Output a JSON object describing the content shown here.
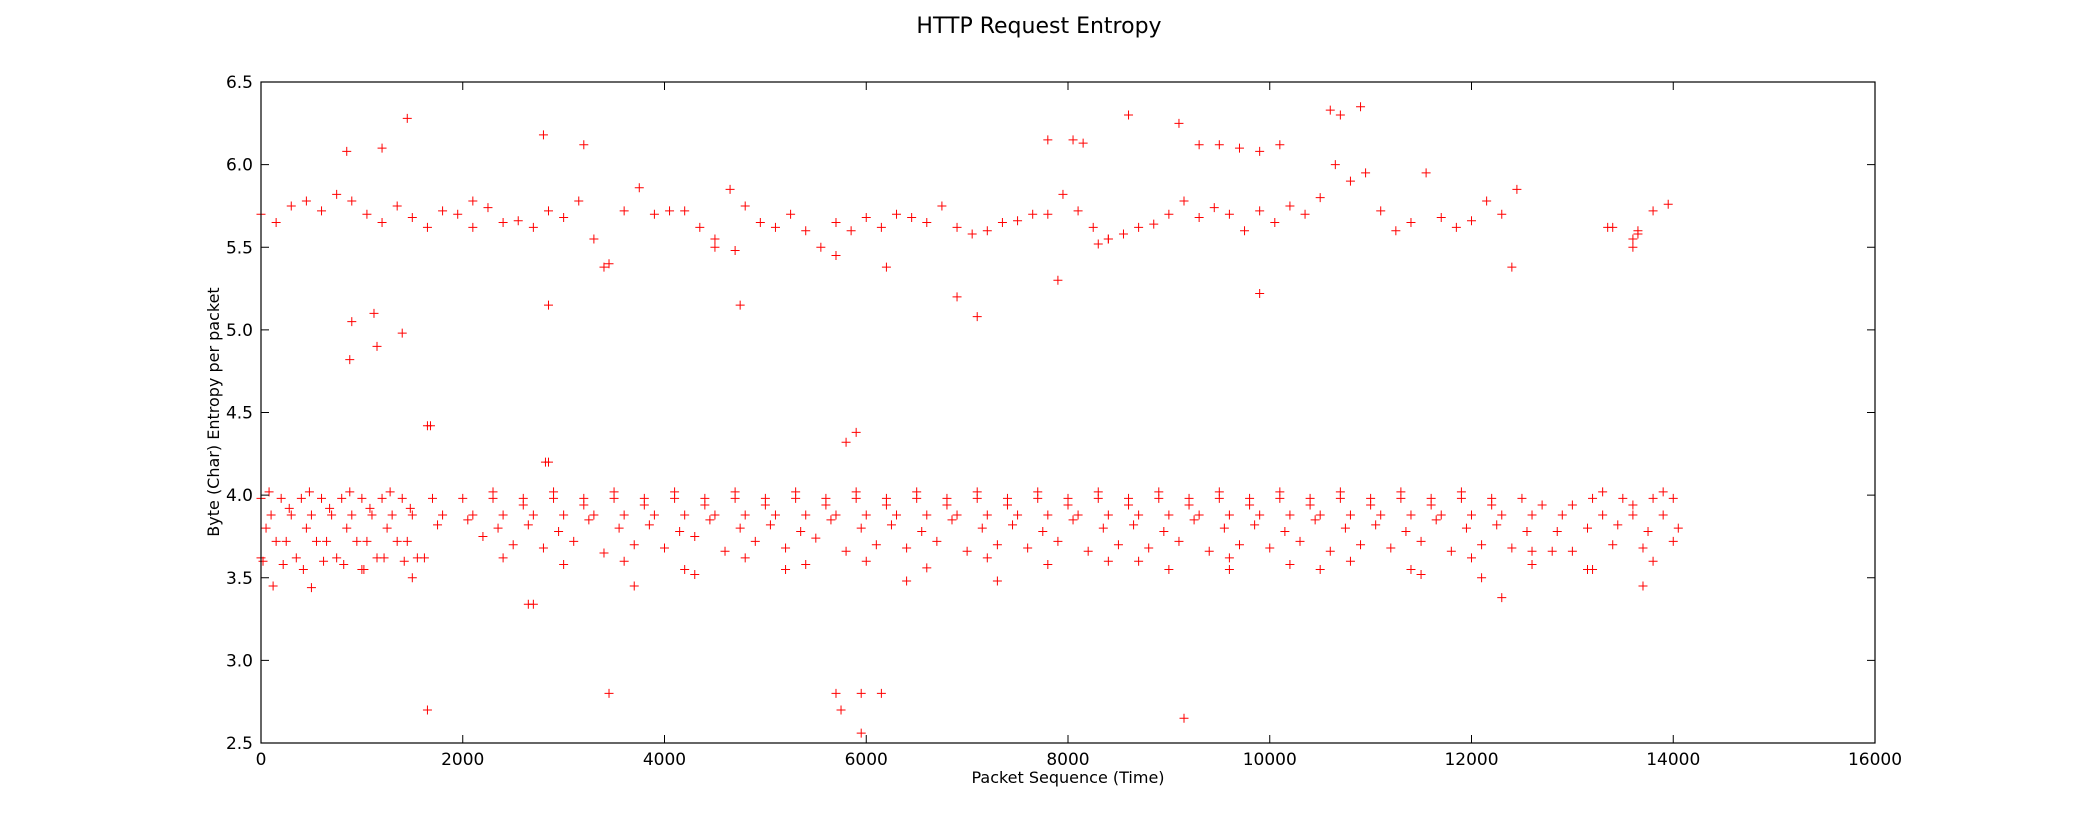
{
  "chart_data": {
    "type": "scatter",
    "title": "HTTP Request Entropy",
    "xlabel": "Packet Sequence (Time)",
    "ylabel": "Byte (Char) Entropy per packet",
    "xlim": [
      0,
      16000
    ],
    "ylim": [
      2.5,
      6.5
    ],
    "xticks": [
      0,
      2000,
      4000,
      6000,
      8000,
      10000,
      12000,
      14000,
      16000
    ],
    "yticks": [
      2.5,
      3.0,
      3.5,
      4.0,
      4.5,
      5.0,
      5.5,
      6.0,
      6.5
    ],
    "xtick_labels": [
      "0",
      "2000",
      "4000",
      "6000",
      "8000",
      "10000",
      "12000",
      "14000",
      "16000"
    ],
    "ytick_labels": [
      "2.5",
      "3.0",
      "3.5",
      "4.0",
      "4.5",
      "5.0",
      "5.5",
      "6.0",
      "6.5"
    ],
    "grid": false,
    "marker": "+",
    "color": "#ff0000",
    "series": [
      {
        "x": [
          0,
          300,
          600,
          900,
          1200,
          1500,
          1800,
          2100,
          2400,
          2700,
          3000,
          3300,
          3600,
          3900,
          4200,
          4500,
          4800,
          5100,
          5400,
          5700,
          6000,
          6300,
          6600,
          6900,
          7200,
          7500,
          7800,
          8100,
          8400,
          8700,
          9000,
          9300,
          9600,
          9900,
          10200,
          10500,
          10800,
          11100,
          11400,
          11700,
          12000,
          12300,
          13400,
          13600,
          13800,
          150,
          450,
          750,
          1050,
          1350,
          1650,
          1950,
          2250,
          2550,
          2850,
          3150,
          3450,
          3750,
          4050,
          4350,
          4650,
          4950,
          5250,
          5550,
          5850,
          6150,
          6450,
          6750,
          7050,
          7350,
          7650,
          7950,
          8250,
          8550,
          8850,
          9150,
          9450,
          9750,
          10050,
          10350,
          10650,
          10950,
          11250,
          11550,
          11850,
          12150,
          12450,
          13350,
          13650,
          13950,
          8050,
          8150,
          9100,
          9300,
          9500,
          9700,
          9900,
          10100,
          10600,
          10700,
          10900,
          1450,
          850,
          1200,
          2800,
          3200,
          7800,
          8600,
          4500,
          4700,
          8300,
          8400,
          13600,
          13650,
          2100,
          3400,
          5700,
          6200,
          900,
          1150,
          1400,
          2850,
          7100,
          9900,
          880,
          1120,
          1650,
          5900,
          2850,
          4750,
          6900,
          7900,
          12400,
          0,
          200,
          400,
          600,
          800,
          1000,
          1200,
          1400,
          1700,
          2000,
          2300,
          2600,
          2900,
          3200,
          3500,
          3800,
          4100,
          4400,
          4700,
          5000,
          5300,
          5600,
          5900,
          6200,
          6500,
          6800,
          7100,
          7400,
          7700,
          8000,
          8300,
          8600,
          8900,
          9200,
          9500,
          9800,
          10100,
          10400,
          10700,
          11000,
          11300,
          11600,
          11900,
          12200,
          12500,
          13200,
          13500,
          13800,
          14000,
          100,
          300,
          500,
          700,
          900,
          1100,
          1300,
          1500,
          1800,
          2100,
          2400,
          2700,
          3000,
          3300,
          3600,
          3900,
          4200,
          4500,
          4800,
          5100,
          5400,
          5700,
          6000,
          6300,
          6600,
          6900,
          7200,
          7500,
          7800,
          8100,
          8400,
          8700,
          9000,
          9300,
          9600,
          9900,
          10200,
          10500,
          10800,
          11100,
          11400,
          11700,
          12000,
          12300,
          12600,
          12900,
          13300,
          13600,
          13900,
          50,
          250,
          450,
          650,
          850,
          1050,
          1250,
          1450,
          1750,
          2050,
          2350,
          2650,
          2950,
          3250,
          3550,
          3850,
          4150,
          4450,
          4750,
          5050,
          5350,
          5650,
          5950,
          6250,
          6550,
          6850,
          7150,
          7450,
          7750,
          8050,
          8350,
          8650,
          8950,
          9250,
          9550,
          9850,
          10150,
          10450,
          10750,
          11050,
          11350,
          11650,
          11950,
          12250,
          12550,
          12850,
          13150,
          13450,
          13750,
          14050,
          0,
          150,
          350,
          550,
          750,
          950,
          1150,
          1350,
          1550,
          2200,
          2500,
          2800,
          3100,
          3400,
          3700,
          4000,
          4300,
          4600,
          4900,
          5200,
          5500,
          5800,
          6100,
          6400,
          6700,
          7000,
          7300,
          7600,
          7900,
          8200,
          8500,
          8800,
          9100,
          9400,
          9700,
          10000,
          10300,
          10600,
          10900,
          11200,
          11500,
          11800,
          12100,
          12400,
          12600,
          12800,
          13000,
          13400,
          13700,
          14000,
          80,
          280,
          480,
          680,
          880,
          1080,
          1280,
          1480,
          2300,
          2600,
          2900,
          3200,
          3500,
          3800,
          4100,
          4400,
          4700,
          5000,
          5300,
          5600,
          5900,
          6200,
          6500,
          6800,
          7100,
          7400,
          7700,
          8000,
          8300,
          8600,
          8900,
          9200,
          9500,
          9800,
          10100,
          10400,
          10700,
          11000,
          11300,
          11600,
          11900,
          12200,
          12700,
          13000,
          13300,
          13600,
          13900,
          20,
          220,
          420,
          620,
          820,
          1020,
          1220,
          1420,
          1620,
          2400,
          3000,
          3600,
          4200,
          4800,
          5400,
          6000,
          6600,
          7200,
          7800,
          8400,
          9000,
          9600,
          10200,
          10800,
          11400,
          12000,
          12600,
          13200,
          13800,
          120,
          500,
          1000,
          1500,
          2700,
          3700,
          4300,
          5200,
          6400,
          7300,
          8700,
          9600,
          10500,
          11500,
          12100,
          12300,
          13150,
          13700,
          1650,
          3450,
          5700,
          5750,
          5950,
          6150,
          9150,
          2820,
          5800,
          5950,
          1680,
          2650
        ],
        "y": [
          5.7,
          5.75,
          5.72,
          5.78,
          5.65,
          5.68,
          5.72,
          5.78,
          5.65,
          5.62,
          5.68,
          5.55,
          5.72,
          5.7,
          5.72,
          5.55,
          5.75,
          5.62,
          5.6,
          5.65,
          5.68,
          5.7,
          5.65,
          5.62,
          5.6,
          5.66,
          5.7,
          5.72,
          5.55,
          5.62,
          5.7,
          5.68,
          5.7,
          5.72,
          5.75,
          5.8,
          5.9,
          5.72,
          5.65,
          5.68,
          5.66,
          5.7,
          5.62,
          5.55,
          5.72,
          5.65,
          5.78,
          5.82,
          5.7,
          5.75,
          5.62,
          5.7,
          5.74,
          5.66,
          5.72,
          5.78,
          5.4,
          5.86,
          5.72,
          5.62,
          5.85,
          5.65,
          5.7,
          5.5,
          5.6,
          5.62,
          5.68,
          5.75,
          5.58,
          5.65,
          5.7,
          5.82,
          5.62,
          5.58,
          5.64,
          5.78,
          5.74,
          5.6,
          5.65,
          5.7,
          6.0,
          5.95,
          5.6,
          5.95,
          5.62,
          5.78,
          5.85,
          5.62,
          5.58,
          5.76,
          6.15,
          6.13,
          6.25,
          6.12,
          6.12,
          6.1,
          6.08,
          6.12,
          6.33,
          6.3,
          6.35,
          6.28,
          6.08,
          6.1,
          6.18,
          6.12,
          6.15,
          6.3,
          5.5,
          5.48,
          5.52,
          5.55,
          5.5,
          5.6,
          5.62,
          5.38,
          5.45,
          5.38,
          5.05,
          4.9,
          4.98,
          5.15,
          5.08,
          5.22,
          4.82,
          5.1,
          4.42,
          4.38,
          4.2,
          5.15,
          5.2,
          5.3,
          5.38,
          3.98,
          3.98,
          3.98,
          3.98,
          3.98,
          3.98,
          3.98,
          3.98,
          3.98,
          3.98,
          3.98,
          3.98,
          3.98,
          3.98,
          3.98,
          3.98,
          3.98,
          3.98,
          3.98,
          3.98,
          3.98,
          3.98,
          3.98,
          3.98,
          3.98,
          3.98,
          3.98,
          3.98,
          3.98,
          3.98,
          3.98,
          3.98,
          3.98,
          3.98,
          3.98,
          3.98,
          3.98,
          3.98,
          3.98,
          3.98,
          3.98,
          3.98,
          3.98,
          3.98,
          3.98,
          3.98,
          3.98,
          3.98,
          3.98,
          3.88,
          3.88,
          3.88,
          3.88,
          3.88,
          3.88,
          3.88,
          3.88,
          3.88,
          3.88,
          3.88,
          3.88,
          3.88,
          3.88,
          3.88,
          3.88,
          3.88,
          3.88,
          3.88,
          3.88,
          3.88,
          3.88,
          3.88,
          3.88,
          3.88,
          3.88,
          3.88,
          3.88,
          3.88,
          3.88,
          3.88,
          3.88,
          3.88,
          3.88,
          3.88,
          3.88,
          3.88,
          3.88,
          3.88,
          3.88,
          3.88,
          3.88,
          3.88,
          3.88,
          3.88,
          3.88,
          3.88,
          3.88,
          3.88,
          3.8,
          3.72,
          3.8,
          3.72,
          3.8,
          3.72,
          3.8,
          3.72,
          3.82,
          3.85,
          3.8,
          3.82,
          3.78,
          3.85,
          3.8,
          3.82,
          3.78,
          3.85,
          3.8,
          3.82,
          3.78,
          3.85,
          3.8,
          3.82,
          3.78,
          3.85,
          3.8,
          3.82,
          3.78,
          3.85,
          3.8,
          3.82,
          3.78,
          3.85,
          3.8,
          3.82,
          3.78,
          3.85,
          3.8,
          3.82,
          3.78,
          3.85,
          3.8,
          3.82,
          3.78,
          3.78,
          3.8,
          3.82,
          3.78,
          3.8,
          3.62,
          3.72,
          3.62,
          3.72,
          3.62,
          3.72,
          3.62,
          3.72,
          3.62,
          3.75,
          3.7,
          3.68,
          3.72,
          3.65,
          3.7,
          3.68,
          3.75,
          3.66,
          3.72,
          3.68,
          3.74,
          3.66,
          3.7,
          3.68,
          3.72,
          3.66,
          3.7,
          3.68,
          3.72,
          3.66,
          3.7,
          3.68,
          3.72,
          3.66,
          3.7,
          3.68,
          3.72,
          3.66,
          3.7,
          3.68,
          3.72,
          3.66,
          3.7,
          3.68,
          3.66,
          3.66,
          3.66,
          3.7,
          3.68,
          3.72,
          4.02,
          3.92,
          4.02,
          3.92,
          4.02,
          3.92,
          4.02,
          3.92,
          4.02,
          3.94,
          4.02,
          3.94,
          4.02,
          3.94,
          4.02,
          3.94,
          4.02,
          3.94,
          4.02,
          3.94,
          4.02,
          3.94,
          4.02,
          3.94,
          4.02,
          3.94,
          4.02,
          3.94,
          4.02,
          3.94,
          4.02,
          3.94,
          4.02,
          3.94,
          4.02,
          3.94,
          4.02,
          3.94,
          4.02,
          3.94,
          4.02,
          3.94,
          3.94,
          3.94,
          4.02,
          3.94,
          4.02,
          3.6,
          3.58,
          3.55,
          3.6,
          3.58,
          3.55,
          3.62,
          3.6,
          3.62,
          3.62,
          3.58,
          3.6,
          3.55,
          3.62,
          3.58,
          3.6,
          3.56,
          3.62,
          3.58,
          3.6,
          3.55,
          3.62,
          3.58,
          3.6,
          3.55,
          3.62,
          3.58,
          3.55,
          3.6,
          3.45,
          3.44,
          3.55,
          3.5,
          3.34,
          3.45,
          3.52,
          3.55,
          3.48,
          3.48,
          3.6,
          3.55,
          3.55,
          3.52,
          3.5,
          3.38,
          3.55,
          3.45,
          2.7,
          2.8,
          2.8,
          2.7,
          2.8,
          2.8,
          2.65,
          4.2,
          4.32,
          2.56,
          4.42,
          3.34
        ]
      }
    ]
  }
}
